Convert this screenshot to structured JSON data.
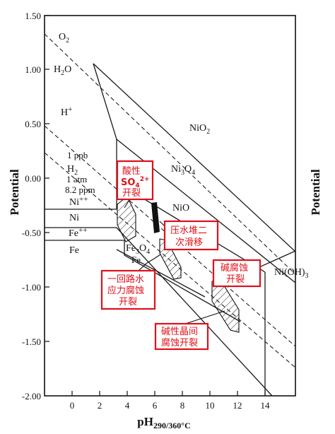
{
  "y_axis": {
    "title": "Potential",
    "right_title": "Potential",
    "ticks": [
      "1.50",
      "1.00",
      "0.50",
      "0.00",
      "-0.50",
      "-1.00",
      "-1.50",
      "-2.00"
    ]
  },
  "x_axis": {
    "title_main": "pH",
    "title_sub": "290/360°C",
    "ticks": [
      "0",
      "2",
      "4",
      "6",
      "8",
      "10",
      "12",
      "14"
    ]
  },
  "labels": {
    "o2": "O",
    "o2_sub": "2",
    "h2o_h": "H",
    "h2o_sub": "2",
    "h2o_o": "O",
    "hplus": "H",
    "hplus_sup": "+",
    "ppb": "1 ppb",
    "h2": "H",
    "h2_sub": "2",
    "atm": "1 atm",
    "ppm": "8.2 ppm",
    "ni_ion": "Ni",
    "ni_ion_sup": "++",
    "ni": "Ni",
    "fe_ion": "Fe",
    "fe_ion_sup": "++",
    "fe": "Fe",
    "fe3o4_a": "Fe",
    "fe3o4_b": "3",
    "fe3o4_c": "O",
    "fe3o4_d": "4",
    "fe_small": "Fe",
    "nio2": "NiO",
    "nio2_sub": "2",
    "ni3o4_a": "Ni",
    "ni3o4_b": "3",
    "ni3o4_c": "O",
    "ni3o4_d": "4",
    "nio": "NiO",
    "nioh3": "Ni(OH)",
    "nioh3_sub": "3"
  },
  "annotations": {
    "acidic": {
      "line1": "酸性",
      "line2_main": "SO",
      "line2_sub": "4",
      "line2_sup": "2+",
      "line3": "开裂"
    },
    "pressure": {
      "line1": "压水堆二",
      "line2": "次滑移"
    },
    "loop": {
      "line1": "一回路水",
      "line2": "应力腐蚀",
      "line3": "开裂"
    },
    "caustic": {
      "line1": "碱腐蚀",
      "line2": "开裂"
    },
    "alkaline": {
      "line1": "碱性晶间",
      "line2": "腐蚀开裂"
    }
  },
  "colors": {
    "annotation": "#e0101a",
    "line": "#1a1a1a"
  }
}
